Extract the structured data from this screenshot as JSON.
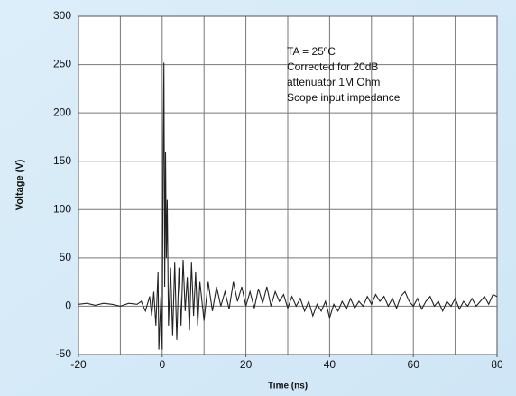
{
  "chart_data": {
    "type": "line",
    "xlabel": "Time  (ns)",
    "ylabel": "Voltage (V)",
    "annotation": [
      "TA = 25ºC",
      "Corrected for 20dB",
      "attenuator 1M Ohm",
      "Scope input impedance"
    ],
    "x": [
      -20,
      -18,
      -16,
      -14,
      -12,
      -10,
      -8,
      -6,
      -5,
      -4,
      -3,
      -2.5,
      -2,
      -1.5,
      -1,
      -0.8,
      -0.3,
      0,
      0.2,
      0.4,
      0.6,
      0.8,
      1,
      1.2,
      1.5,
      2,
      2.5,
      3,
      3.5,
      4,
      4.5,
      5,
      5.5,
      6,
      6.5,
      7,
      7.5,
      8,
      8.5,
      9,
      10,
      11,
      12,
      13,
      14,
      15,
      16,
      17,
      18,
      19,
      20,
      21,
      22,
      23,
      24,
      25,
      26,
      27,
      28,
      29,
      30,
      31,
      32,
      33,
      34,
      35,
      36,
      37,
      38,
      39,
      40,
      41,
      42,
      43,
      44,
      45,
      46,
      47,
      48,
      49,
      50,
      51,
      52,
      53,
      54,
      55,
      56,
      57,
      58,
      59,
      60,
      61,
      62,
      63,
      64,
      65,
      66,
      67,
      68,
      69,
      70,
      71,
      72,
      73,
      74,
      75,
      76,
      77,
      78,
      79,
      80
    ],
    "values": [
      2,
      3,
      1,
      3,
      2,
      0,
      3,
      2,
      5,
      -5,
      10,
      -10,
      15,
      -20,
      35,
      -45,
      10,
      -45,
      130,
      252,
      20,
      160,
      50,
      110,
      -20,
      40,
      -30,
      45,
      -35,
      40,
      -20,
      48,
      -5,
      30,
      -25,
      45,
      -10,
      35,
      -20,
      25,
      -15,
      25,
      -5,
      20,
      0,
      15,
      -3,
      25,
      5,
      20,
      0,
      15,
      -2,
      18,
      3,
      20,
      0,
      15,
      5,
      12,
      -2,
      10,
      0,
      8,
      -5,
      5,
      -10,
      2,
      -5,
      5,
      -12,
      2,
      -5,
      5,
      -3,
      8,
      -2,
      5,
      0,
      10,
      2,
      12,
      5,
      10,
      0,
      8,
      -2,
      10,
      15,
      5,
      0,
      8,
      -3,
      5,
      10,
      0,
      5,
      -5,
      5,
      0,
      8,
      -3,
      5,
      0,
      8,
      0,
      5,
      10,
      2,
      12,
      10
    ],
    "color": "#222222",
    "xlim": [
      -20,
      80
    ],
    "ylim": [
      -50,
      300
    ],
    "xticks": [
      -20,
      0,
      20,
      40,
      60,
      80
    ],
    "xgrid": [
      -20,
      -10,
      0,
      10,
      20,
      30,
      40,
      50,
      60,
      70,
      80
    ],
    "yticks": [
      -50,
      0,
      50,
      100,
      150,
      200,
      250,
      300
    ],
    "grid": true
  }
}
